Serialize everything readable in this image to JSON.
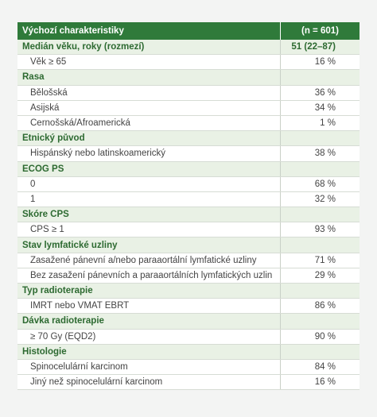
{
  "table": {
    "header": {
      "label": "Výchozí charakteristiky",
      "value": "(n = 601)"
    },
    "sections": [
      {
        "title": "Medián věku, roky (rozmezí)",
        "value": "51 (22–87)",
        "items": [
          {
            "label": "Věk ≥ 65",
            "value": "16 %"
          }
        ]
      },
      {
        "title": "Rasa",
        "items": [
          {
            "label": "Bělošská",
            "value": "36 %"
          },
          {
            "label": "Asijská",
            "value": "34 %"
          },
          {
            "label": "Černošská/Afroamerická",
            "value": "1 %"
          }
        ]
      },
      {
        "title": "Etnický původ",
        "items": [
          {
            "label": "Hispánský nebo latinskoamerický",
            "value": "38 %"
          }
        ]
      },
      {
        "title": "ECOG PS",
        "items": [
          {
            "label": "0",
            "value": "68 %"
          },
          {
            "label": "1",
            "value": "32 %"
          }
        ]
      },
      {
        "title": "Skóre CPS",
        "items": [
          {
            "label": "CPS ≥ 1",
            "value": "93 %"
          }
        ]
      },
      {
        "title": "Stav lymfatické uzliny",
        "items": [
          {
            "label": "Zasažené pánevní a/nebo paraaortální lymfatické uzliny",
            "value": "71 %"
          },
          {
            "label": "Bez zasažení pánevních a paraaortálních lymfatických uzlin",
            "value": "29 %"
          }
        ]
      },
      {
        "title": "Typ radioterapie",
        "items": [
          {
            "label": "IMRT nebo VMAT EBRT",
            "value": "86 %"
          }
        ]
      },
      {
        "title": "Dávka radioterapie",
        "items": [
          {
            "label": "≥ 70 Gy (EQD2)",
            "value": "90 %"
          }
        ]
      },
      {
        "title": "Histologie",
        "items": [
          {
            "label": "Spinocelulární karcinom",
            "value": "84 %"
          },
          {
            "label": "Jiný než spinocelulární karcinom",
            "value": "16 %"
          }
        ]
      }
    ]
  }
}
